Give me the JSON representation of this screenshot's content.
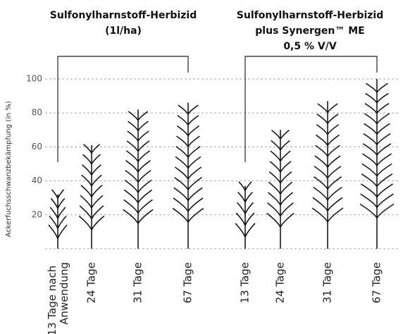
{
  "chart_data": {
    "type": "pictogram",
    "y_axis_label": "Ackerfuchsschwanzbekämpfung (in %)",
    "groups": [
      {
        "title": [
          "Sulfonylharnstoff-Herbizid",
          "(1l/ha)"
        ],
        "categories": [
          "13 Tage nach Anwendung",
          "24 Tage",
          "31 Tage",
          "67 Tage"
        ],
        "values": [
          32,
          61,
          82,
          86
        ]
      },
      {
        "title": [
          "Sulfonylharnstoff-Herbizid",
          "plus Synergen™ ME",
          "0,5 % V/V"
        ],
        "categories": [
          "13 Tage",
          "24 Tage",
          "31 Tage",
          "67 Tage"
        ],
        "values": [
          37,
          70,
          87,
          100
        ]
      }
    ],
    "color": "#1a1a1a",
    "ylim": [
      0,
      100
    ],
    "yticks": [
      20,
      40,
      60,
      80,
      100
    ],
    "grid": true
  }
}
